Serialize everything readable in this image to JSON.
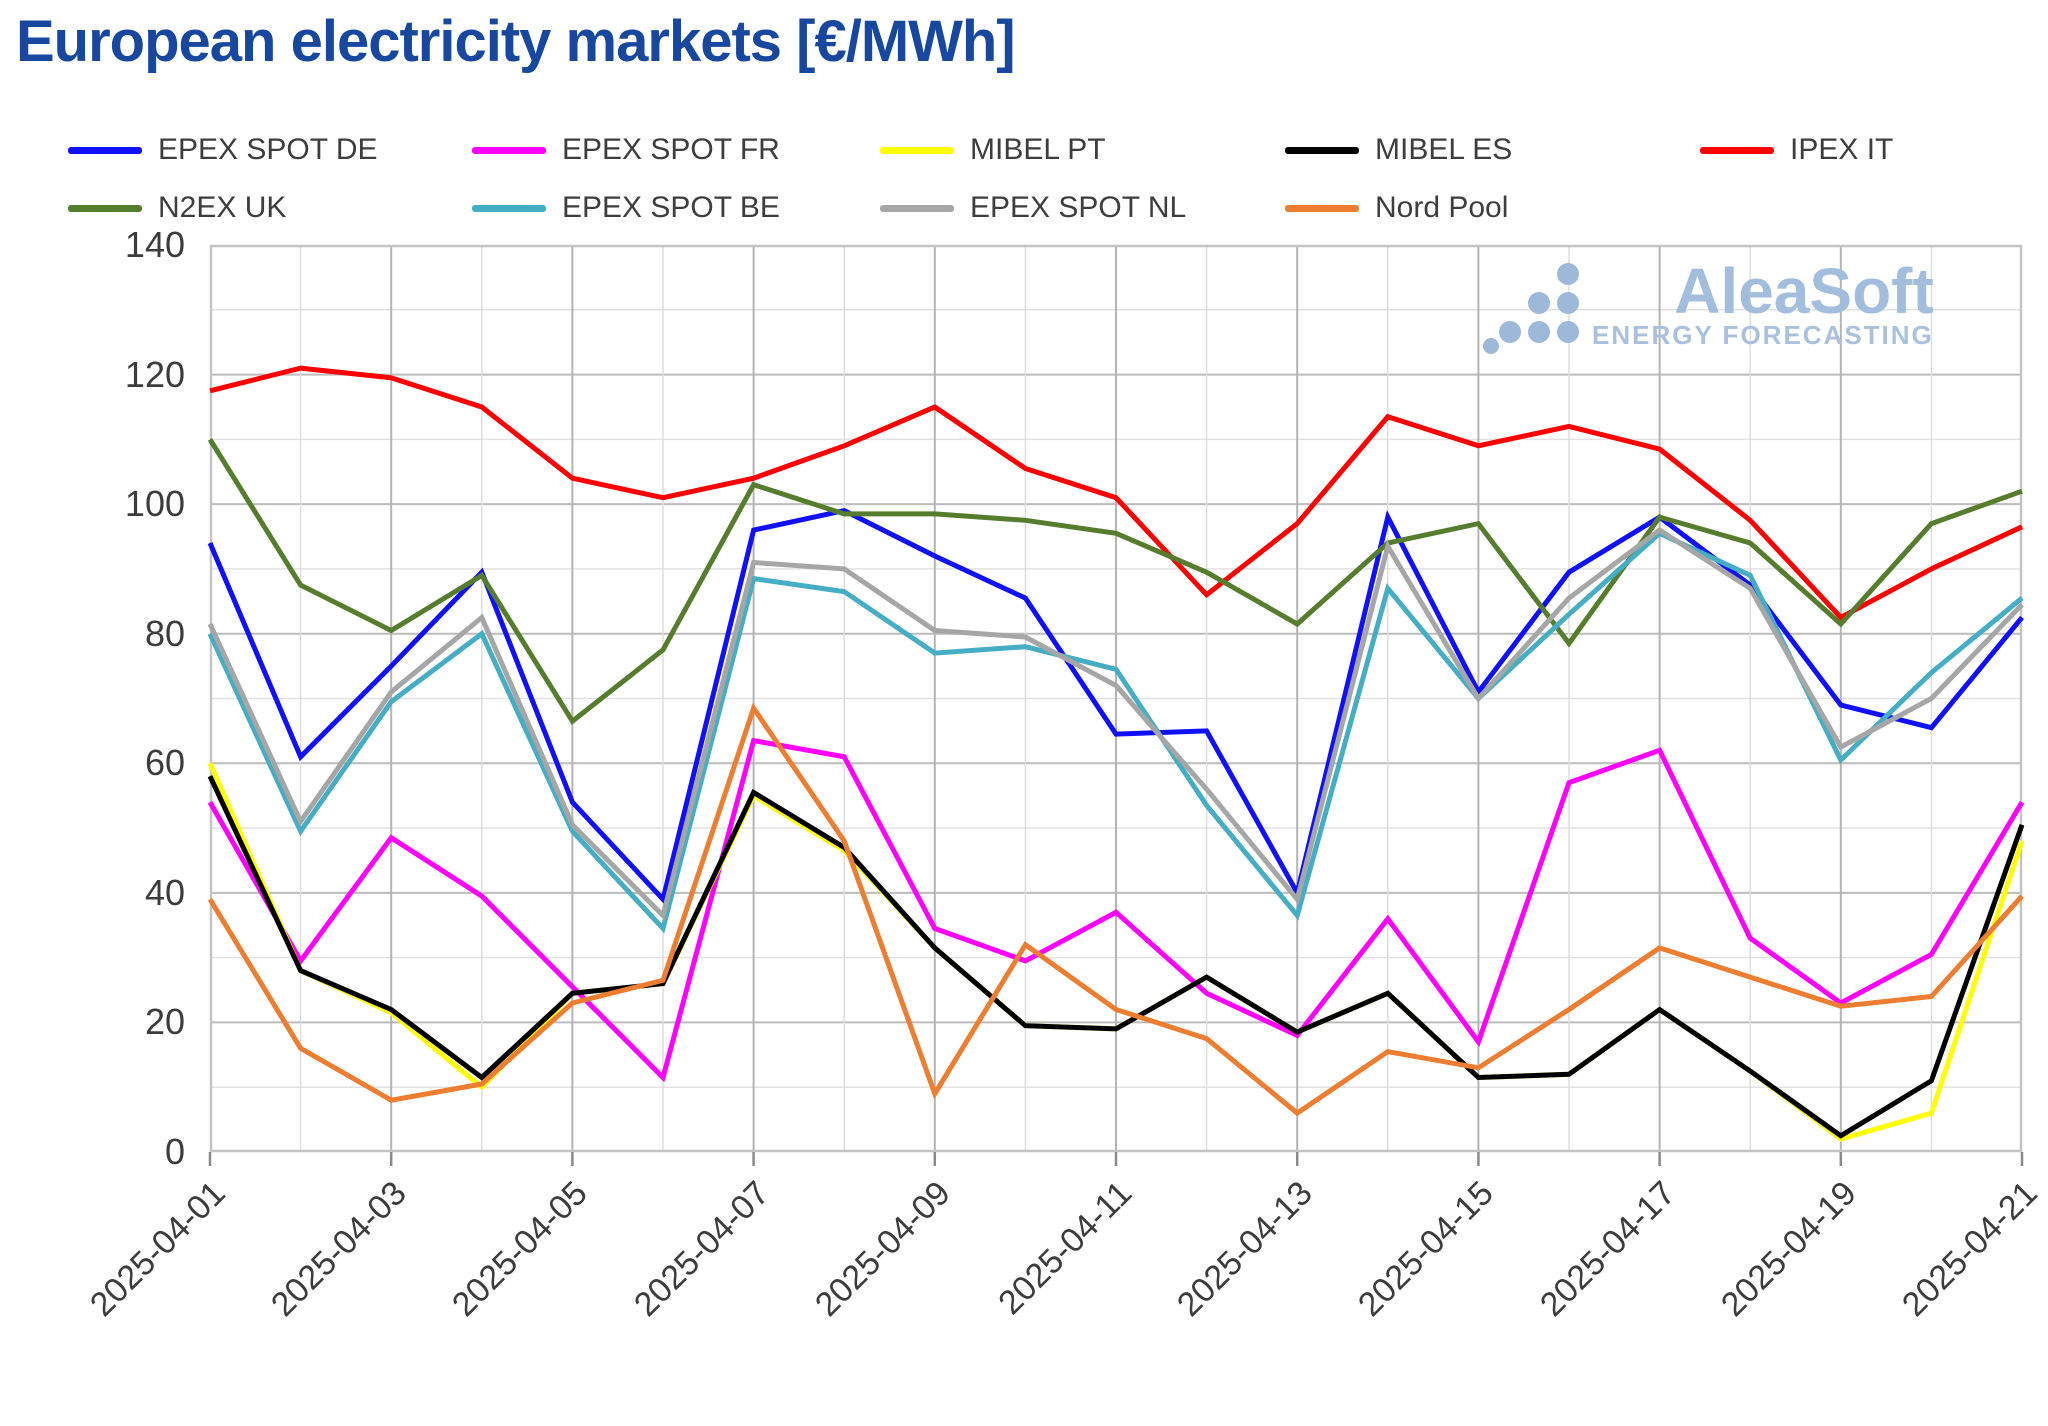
{
  "title": "European electricity markets [€/MWh]",
  "watermark": {
    "wordmark": "AleaSoft",
    "tagline": "ENERGY FORECASTING",
    "color": "#a3bddd"
  },
  "axes": {
    "y_tick_labels": [
      "0",
      "20",
      "40",
      "60",
      "80",
      "100",
      "120",
      "140"
    ],
    "x_tick_labels": [
      "2025-04-01",
      "2025-04-03",
      "2025-04-05",
      "2025-04-07",
      "2025-04-09",
      "2025-04-11",
      "2025-04-13",
      "2025-04-15",
      "2025-04-17",
      "2025-04-19",
      "2025-04-21"
    ]
  },
  "chart_data": {
    "type": "line",
    "title": "European electricity markets [€/MWh]",
    "xlabel": "",
    "ylabel": "",
    "ylim": [
      0,
      140
    ],
    "ytick_step": 20,
    "minor_grid_step": 10,
    "grid": "both",
    "legend_position": "top",
    "x_tick_label_every": 2,
    "x_tick_rotation": 45,
    "x": [
      "2025-04-01",
      "2025-04-02",
      "2025-04-03",
      "2025-04-04",
      "2025-04-05",
      "2025-04-06",
      "2025-04-07",
      "2025-04-08",
      "2025-04-09",
      "2025-04-10",
      "2025-04-11",
      "2025-04-12",
      "2025-04-13",
      "2025-04-14",
      "2025-04-15",
      "2025-04-16",
      "2025-04-17",
      "2025-04-18",
      "2025-04-19",
      "2025-04-20",
      "2025-04-21"
    ],
    "series": [
      {
        "name": "EPEX SPOT DE",
        "color": "#1010ff",
        "values": [
          94,
          61,
          75,
          89.5,
          54,
          39,
          96,
          99,
          92,
          85.5,
          64.5,
          65,
          40,
          98,
          71,
          89.5,
          98,
          87.5,
          69,
          65.5,
          82.5
        ]
      },
      {
        "name": "EPEX SPOT FR",
        "color": "#ff00ff",
        "values": [
          54,
          29.5,
          48.5,
          39.5,
          25.5,
          11.5,
          63.5,
          61,
          34.5,
          29.5,
          37,
          24.5,
          18,
          36,
          17,
          57,
          62,
          33,
          23,
          30.5,
          54
        ]
      },
      {
        "name": "MIBEL PT",
        "color": "#ffff00",
        "values": [
          60,
          28,
          21.5,
          10,
          24.5,
          26,
          55,
          46.5,
          31.5,
          19.5,
          19,
          27,
          18.5,
          24.5,
          11.5,
          12,
          22,
          12.5,
          2,
          6,
          48
        ]
      },
      {
        "name": "MIBEL ES",
        "color": "#000000",
        "values": [
          58,
          28,
          22,
          11.5,
          24.5,
          26,
          55.5,
          47,
          31.5,
          19.5,
          19,
          27,
          18.5,
          24.5,
          11.5,
          12,
          22,
          12.5,
          2.5,
          11,
          50.5
        ]
      },
      {
        "name": "IPEX IT",
        "color": "#fe0000",
        "values": [
          117.5,
          121,
          119.5,
          115,
          104,
          101,
          104,
          109,
          115,
          105.5,
          101,
          86,
          97,
          113.5,
          109,
          112,
          108.5,
          97.5,
          82.5,
          90,
          96.5
        ]
      },
      {
        "name": "N2EX UK",
        "color": "#567d2e",
        "values": [
          110,
          87.5,
          80.5,
          89,
          66.5,
          77.5,
          103,
          98.5,
          98.5,
          97.5,
          95.5,
          89.5,
          81.5,
          94,
          97,
          78.5,
          98,
          94,
          81.5,
          97,
          102
        ]
      },
      {
        "name": "EPEX SPOT BE",
        "color": "#45aec5",
        "values": [
          80,
          49.5,
          69.5,
          80,
          49.5,
          34.5,
          88.5,
          86.5,
          77,
          78,
          74.5,
          53.5,
          36.5,
          87,
          70,
          83,
          95.5,
          89,
          60.5,
          74,
          85.5
        ]
      },
      {
        "name": "EPEX SPOT NL",
        "color": "#a6a6a6",
        "values": [
          81.5,
          51,
          71,
          82.5,
          50.5,
          36.5,
          91,
          90,
          80.5,
          79.5,
          72,
          56,
          39,
          93.5,
          70,
          85.5,
          96,
          87,
          62.5,
          70,
          84.5
        ]
      },
      {
        "name": "Nord Pool",
        "color": "#ed7d31",
        "values": [
          39,
          16,
          8,
          10.5,
          23,
          26.5,
          68.5,
          48,
          9,
          32,
          22,
          17.5,
          6,
          15.5,
          13,
          22,
          31.5,
          27,
          22.5,
          24,
          39.5
        ]
      }
    ]
  }
}
